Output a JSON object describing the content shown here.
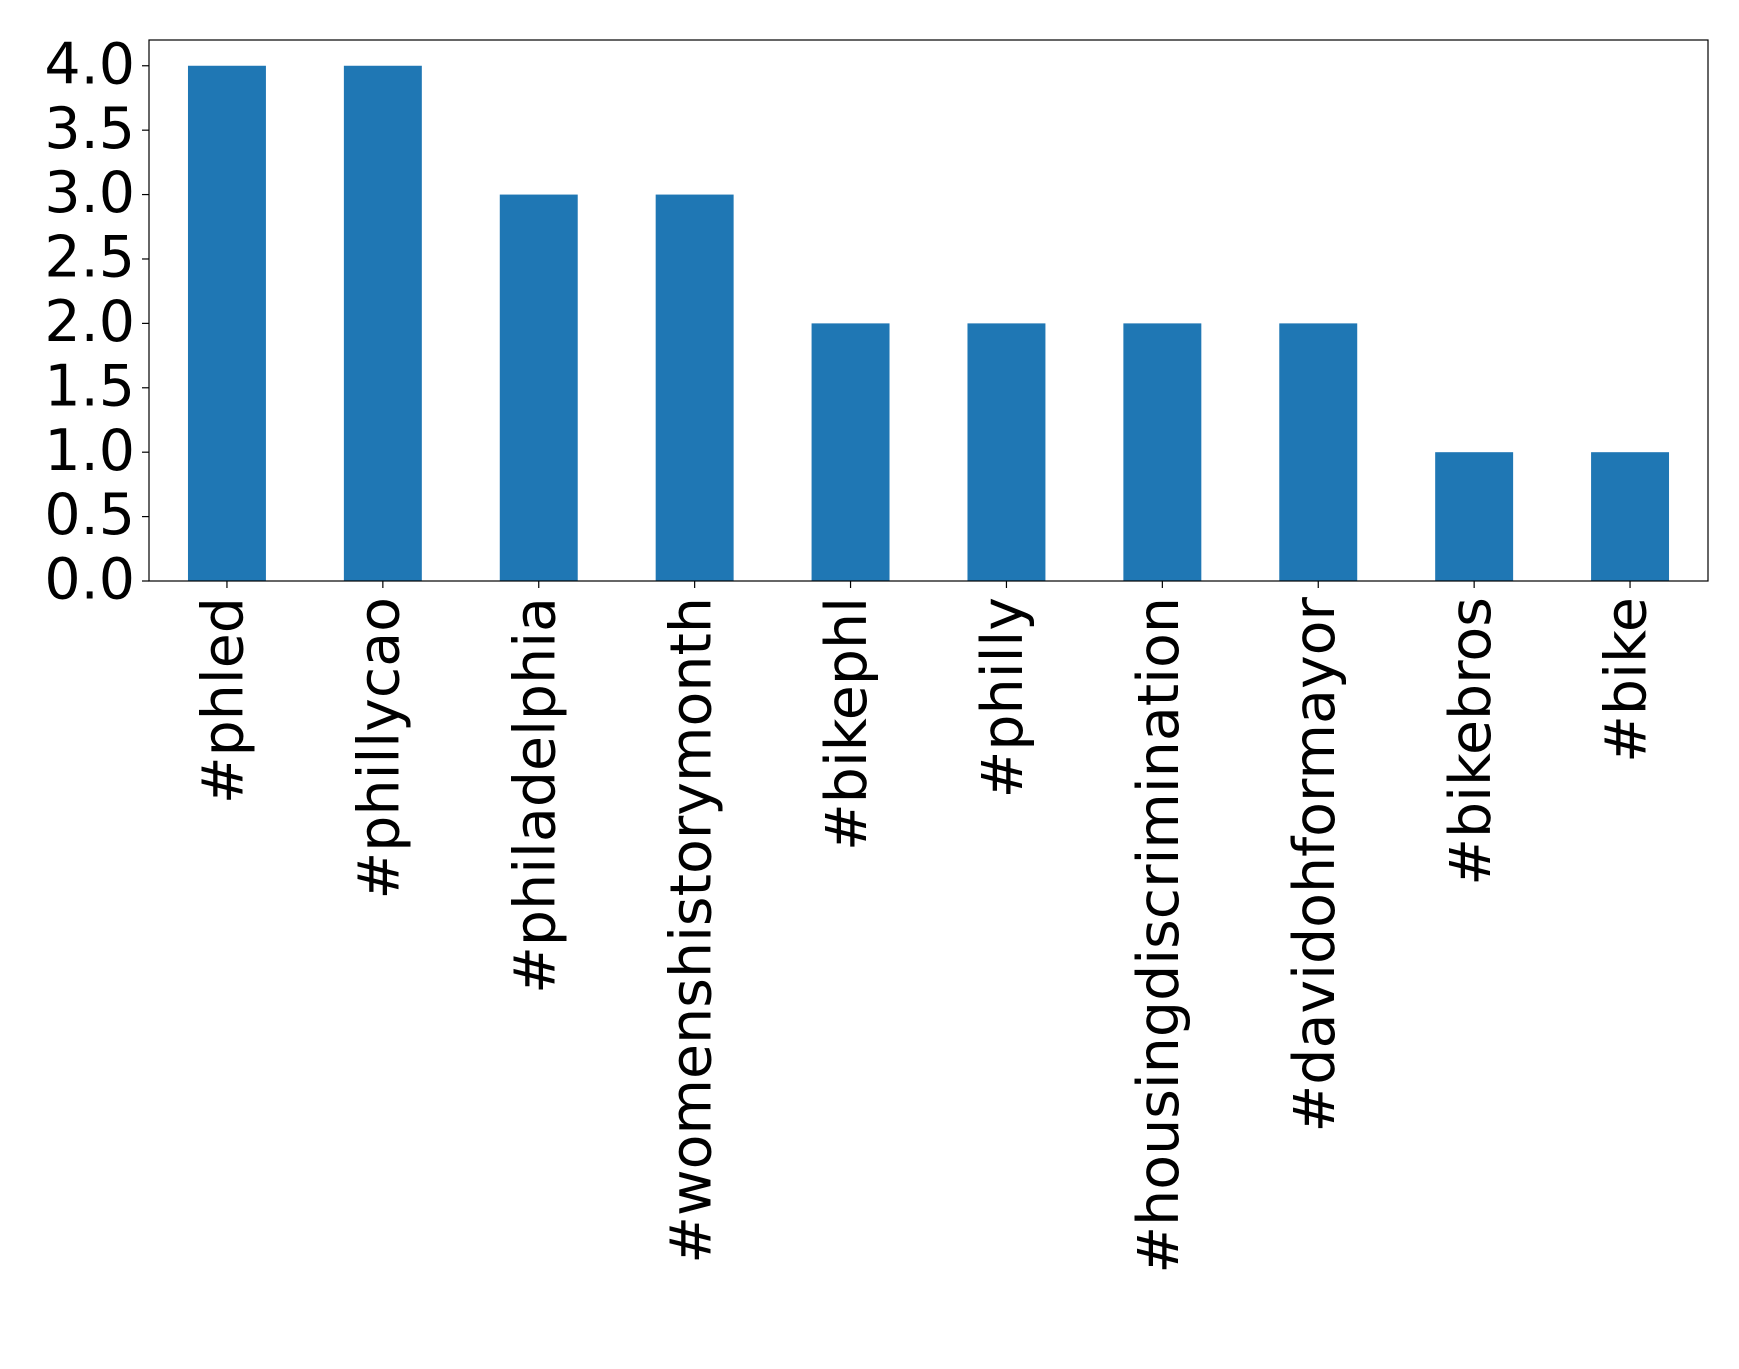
{
  "chart_data": {
    "type": "bar",
    "categories": [
      "#phled",
      "#phillycao",
      "#philadelphia",
      "#womenshistorymonth",
      "#bikephl",
      "#philly",
      "#housingdiscrimination",
      "#davidohformayor",
      "#bikebros",
      "#bike"
    ],
    "values": [
      4,
      4,
      3,
      3,
      2,
      2,
      2,
      2,
      1,
      1
    ],
    "color": "#1f77b4",
    "ylim": [
      0,
      4.2
    ],
    "yticks": [
      {
        "value": 0,
        "label": "0.0"
      },
      0.5,
      {
        "value": 1,
        "label": "1.0"
      },
      1.5,
      {
        "value": 2,
        "label": "2.0"
      },
      2.5,
      {
        "value": 3,
        "label": "3.0"
      },
      3.5,
      {
        "value": 4,
        "label": "4.0"
      }
    ],
    "grid": false
  }
}
